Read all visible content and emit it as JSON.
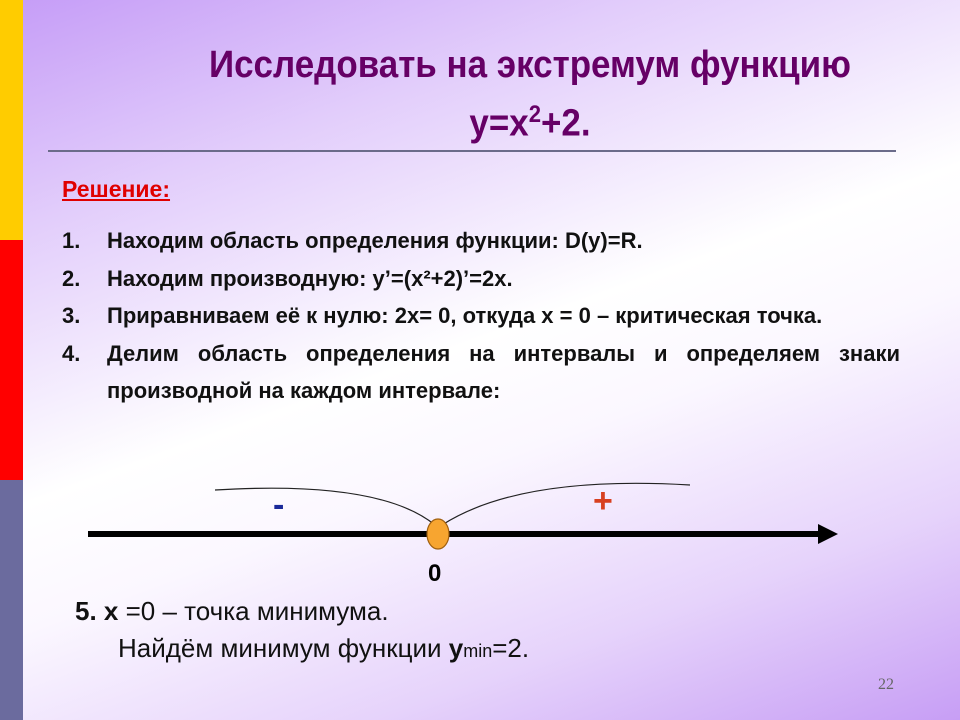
{
  "colors": {
    "accent_bar": [
      "#ffcc00",
      "#ff0000",
      "#6b6b9e"
    ],
    "title": "#660066",
    "solution": "#e00000",
    "minus": "#1a2a99",
    "plus": "#d84020",
    "point": "#f7a530"
  },
  "title": {
    "line1": "Исследовать на экстремум функцию",
    "line2_pre": "y=x",
    "line2_sup": "2",
    "line2_post": "+2."
  },
  "solution_label": "Решение:",
  "steps": [
    {
      "num": "1.",
      "text": "Находим область определения функции: D(y)=R."
    },
    {
      "num": "2.",
      "text": "Находим производную: y’=(x²+2)’=2x."
    },
    {
      "num": "3.",
      "text": "Приравниваем её к нулю: 2x= 0, откуда x = 0 – критическая точка."
    },
    {
      "num": "4.",
      "text": "Делим область определения на интервалы и определяем знаки производной на каждом интервале:"
    }
  ],
  "number_line": {
    "point_label": "0",
    "left_sign": "-",
    "right_sign": "+"
  },
  "step5": {
    "bold": "5. x",
    "text": " =0 – точка минимума."
  },
  "minimum": {
    "text": "Найдём минимум функции ",
    "y": "y",
    "sub": "min",
    "value": "=2."
  },
  "page_number": "22"
}
